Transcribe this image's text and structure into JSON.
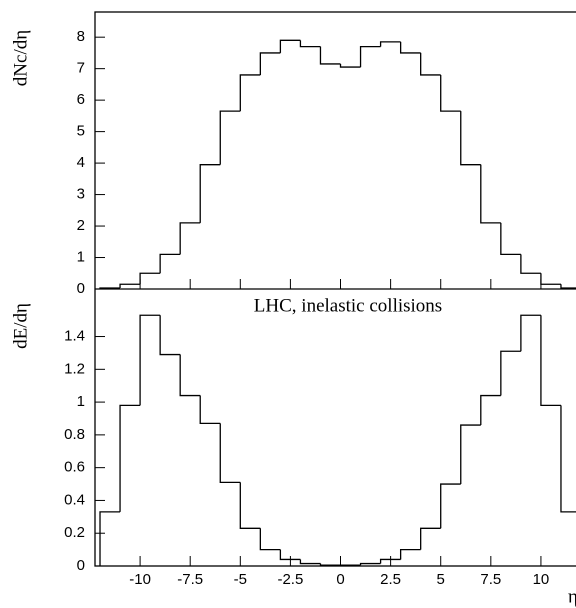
{
  "chart_data": [
    {
      "type": "histogram",
      "ylabel": "dNc/dη",
      "bins": [
        -12,
        -11,
        -10,
        -9,
        -8,
        -7,
        -6,
        -5,
        -4,
        -3,
        -2,
        -1,
        0,
        1,
        2,
        3,
        4,
        5,
        6,
        7,
        8,
        9,
        10,
        11,
        12
      ],
      "values": [
        0.03,
        0.15,
        0.5,
        1.1,
        2.1,
        3.95,
        5.65,
        6.8,
        7.5,
        7.9,
        7.7,
        7.15,
        7.05,
        7.7,
        7.85,
        7.5,
        6.8,
        5.65,
        3.95,
        2.1,
        1.1,
        0.5,
        0.15,
        0.03
      ],
      "color": "#000000",
      "xlim": [
        -12.25,
        11.75
      ],
      "xticks": [
        -10,
        -7.5,
        -5,
        -2.5,
        0,
        2.5,
        5,
        7.5,
        10
      ],
      "ylim": [
        0,
        8.8
      ],
      "yticks": [
        0,
        1,
        2,
        3,
        4,
        5,
        6,
        7,
        8
      ]
    },
    {
      "type": "histogram",
      "ylabel": "dE/dη",
      "annotation": "LHC, inelastic collisions",
      "xlabel": "η",
      "bins": [
        -12,
        -11,
        -10,
        -9,
        -8,
        -7,
        -6,
        -5,
        -4,
        -3,
        -2,
        -1,
        0,
        1,
        2,
        3,
        4,
        5,
        6,
        7,
        8,
        9,
        10,
        11,
        12
      ],
      "values": [
        0.33,
        0.98,
        1.53,
        1.29,
        1.04,
        0.87,
        0.51,
        0.23,
        0.1,
        0.04,
        0.015,
        0.005,
        0.005,
        0.015,
        0.04,
        0.1,
        0.23,
        0.5,
        0.86,
        1.04,
        1.31,
        1.53,
        0.98,
        0.33
      ],
      "color": "#000000",
      "xlim": [
        -12.25,
        11.75
      ],
      "xticks": [
        -10,
        -7.5,
        -5,
        -2.5,
        0,
        2.5,
        5,
        7.5,
        10
      ],
      "ylim": [
        0,
        1.69
      ],
      "yticks": [
        0,
        0.2,
        0.4,
        0.6,
        0.8,
        1,
        1.2,
        1.4
      ]
    }
  ]
}
